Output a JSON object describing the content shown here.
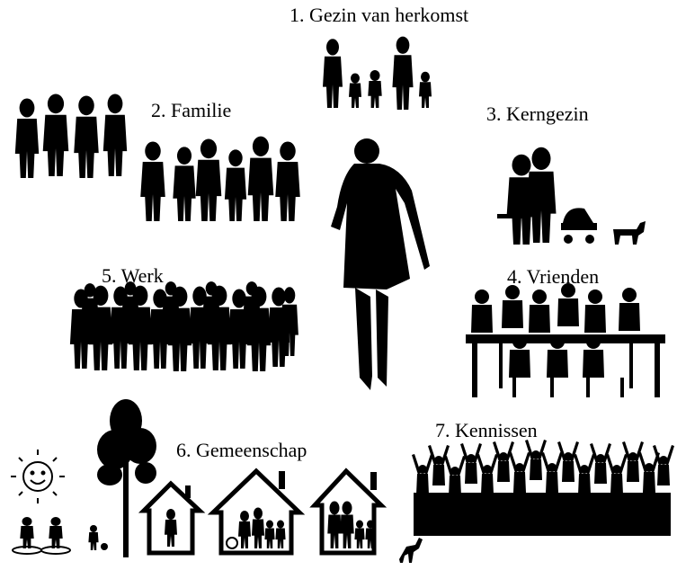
{
  "labels": {
    "gezin_van_herkomst": "1. Gezin van herkomst",
    "familie": "2. Familie",
    "kerngezin": "3. Kerngezin",
    "vrienden": "4. Vrienden",
    "werk": "5. Werk",
    "gemeenschap": "6. Gemeenschap",
    "kennissen": "7. Kennissen"
  },
  "colors": {
    "silhouette": "#000000",
    "background": "#ffffff"
  },
  "icons": [
    "family-silhouette-icon",
    "relatives-group-icon",
    "couple-stroller-dog-icon",
    "friends-dinner-table-icon",
    "crowd-workers-icon",
    "houses-community-icon",
    "tree-icon",
    "sun-icon",
    "cheering-crowd-icon",
    "central-woman-icon"
  ]
}
